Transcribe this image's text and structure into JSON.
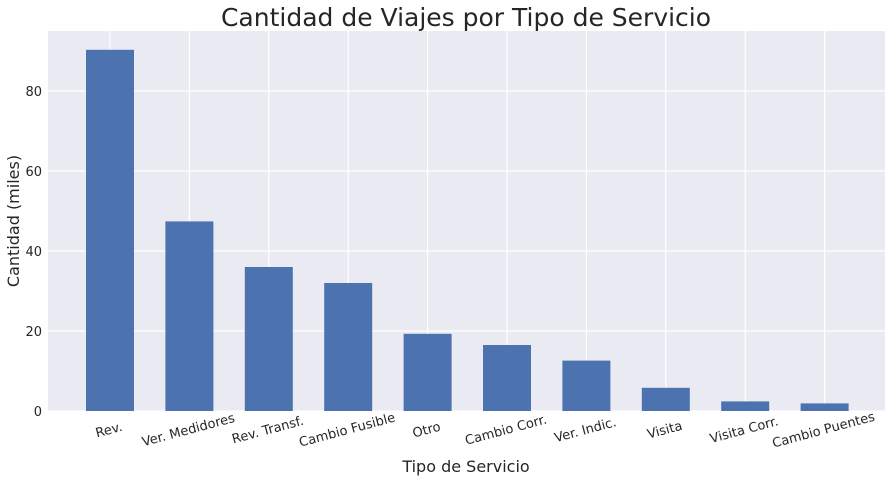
{
  "chart_data": {
    "type": "bar",
    "title": "Cantidad de Viajes por Tipo de Servicio",
    "xlabel": "Tipo de Servicio",
    "ylabel": "Cantidad (miles)",
    "categories": [
      "Rev.",
      "Ver. Medidores",
      "Rev. Transf.",
      "Cambio Fusible",
      "Otro",
      "Cambio Corr.",
      "Ver. Indic.",
      "Visita",
      "Visita Corr.",
      "Cambio Puentes"
    ],
    "values": [
      90.3,
      47.4,
      36.0,
      32.0,
      19.3,
      16.5,
      12.6,
      5.8,
      2.4,
      1.9
    ],
    "ylim": [
      0,
      95
    ],
    "yticks": [
      0,
      20,
      40,
      60,
      80
    ],
    "grid": true,
    "colors": {
      "bar": "#4c72b0",
      "plot_background": "#eaeaf2",
      "grid": "#ffffff",
      "text": "#262626"
    }
  }
}
